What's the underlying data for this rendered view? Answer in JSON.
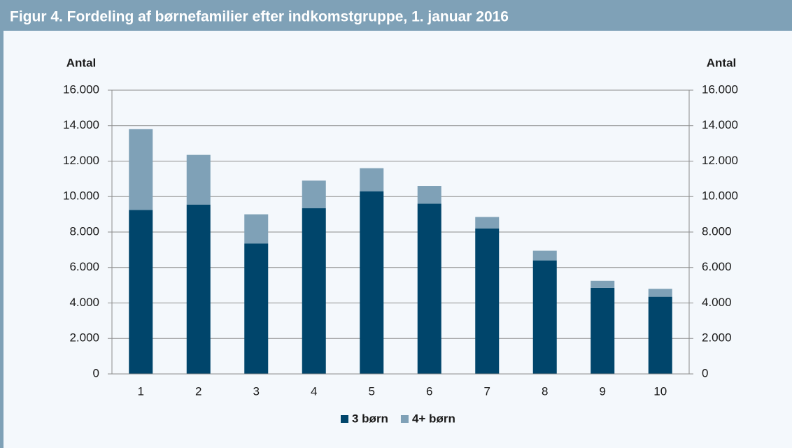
{
  "chart_data": {
    "type": "stacked_bar",
    "title": "Figur 4. Fordeling af børnefamilier efter indkomstgruppe, 1. januar 2016",
    "ylabel": "Antal",
    "y2label": "Antal",
    "categories": [
      "1",
      "2",
      "3",
      "4",
      "5",
      "6",
      "7",
      "8",
      "9",
      "10"
    ],
    "series": [
      {
        "name": "3 børn",
        "color": "#00456b",
        "values": [
          9250,
          9550,
          7350,
          9350,
          10300,
          9600,
          8200,
          6400,
          4850,
          4350
        ]
      },
      {
        "name": "4+ børn",
        "color": "#7fa1b7",
        "values": [
          4550,
          2800,
          1650,
          1550,
          1300,
          1000,
          650,
          550,
          400,
          450
        ]
      }
    ],
    "ylim": [
      0,
      16000
    ],
    "yticks": [
      0,
      {
        "value": 2000,
        "label": "2.000"
      },
      {
        "value": 4000,
        "label": "4.000"
      },
      {
        "value": 6000,
        "label": "6.000"
      },
      {
        "value": 8000,
        "label": "8.000"
      },
      {
        "value": 10000,
        "label": "10.000"
      },
      {
        "value": 12000,
        "label": "12.000"
      },
      {
        "value": 14000,
        "label": "14.000"
      },
      {
        "value": 16000,
        "label": "16.000"
      }
    ],
    "y2lim": [
      0,
      16000
    ],
    "y2ticks": [
      0,
      {
        "value": 2000,
        "label": "2.000"
      },
      {
        "value": 4000,
        "label": "4.000"
      },
      {
        "value": 6000,
        "label": "6.000"
      },
      {
        "value": 8000,
        "label": "8.000"
      },
      {
        "value": 10000,
        "label": "10.000"
      },
      {
        "value": 12000,
        "label": "12.000"
      },
      {
        "value": 14000,
        "label": "14.000"
      },
      {
        "value": 16000,
        "label": "16.000"
      }
    ],
    "grid": true,
    "legend": "bottom"
  }
}
